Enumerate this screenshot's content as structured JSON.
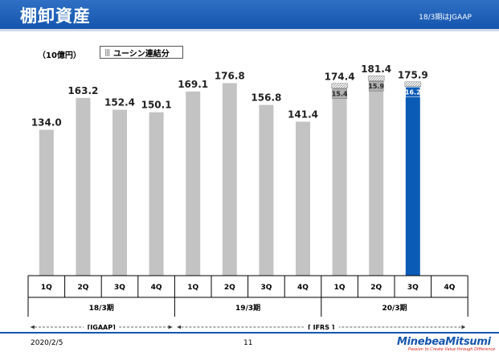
{
  "header": {
    "title": "棚卸資産",
    "note": "18/3期はJGAAP"
  },
  "unit_label": "（10億円）",
  "legend_label": "ユーシン連結分",
  "colors": {
    "header": "#1556ae",
    "bar": "#c3c3c3",
    "highlight": "#0a5bb5"
  },
  "chart_data": {
    "type": "bar",
    "title": "",
    "xlabel": "",
    "ylabel": "",
    "ylim": [
      0,
      200
    ],
    "categories": [
      "1Q",
      "2Q",
      "3Q",
      "4Q",
      "1Q",
      "2Q",
      "3Q",
      "4Q",
      "1Q",
      "2Q",
      "3Q",
      "4Q"
    ],
    "groups": [
      {
        "label": "18/3期",
        "categories": 4
      },
      {
        "label": "19/3期",
        "categories": 4
      },
      {
        "label": "20/3期",
        "categories": 4
      }
    ],
    "series": [
      {
        "name": "",
        "values": [
          134.0,
          163.2,
          152.4,
          150.1,
          169.1,
          176.8,
          156.8,
          141.4,
          174.4,
          181.4,
          175.9,
          null
        ]
      },
      {
        "name": "ユーシン連結分",
        "values": [
          null,
          null,
          null,
          null,
          null,
          null,
          null,
          null,
          15.4,
          15.9,
          16.2,
          null
        ]
      }
    ],
    "value_labels": [
      "134.0",
      "163.2",
      "152.4",
      "150.1",
      "169.1",
      "176.8",
      "156.8",
      "141.4",
      "174.4",
      "181.4",
      "175.9",
      ""
    ],
    "segment_labels": [
      "",
      "",
      "",
      "",
      "",
      "",
      "",
      "",
      "15.4",
      "15.9",
      "16.2",
      ""
    ],
    "highlight_index": 10,
    "accounting_periods": [
      {
        "label": "[JGAAP]",
        "from": 0,
        "to": 3
      },
      {
        "label": "[ IFRS ]",
        "from": 4,
        "to": 11
      }
    ]
  },
  "footer": {
    "date": "2020/2/5",
    "page": "11",
    "logo": "MinebeaMitsumi",
    "tagline": "Passion to Create Value through Difference"
  }
}
